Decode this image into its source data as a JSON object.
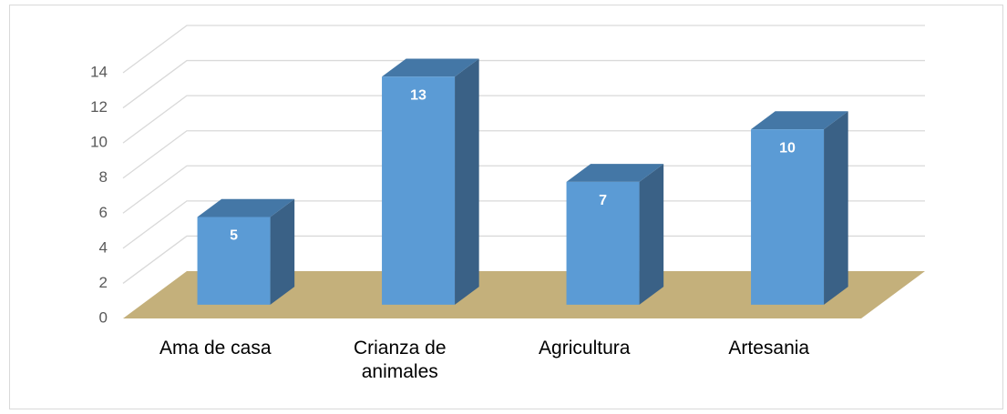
{
  "chart_data": {
    "type": "bar",
    "categories": [
      "Ama de casa",
      "Crianza de animales",
      "Agricultura",
      "Artesania"
    ],
    "values": [
      5,
      13,
      7,
      10
    ],
    "color": "#5b9bd5",
    "floor_color": "#c4b07b",
    "ylim": [
      0,
      14
    ],
    "yticks": [
      0,
      2,
      4,
      6,
      8,
      10,
      12,
      14
    ],
    "grid": true
  }
}
